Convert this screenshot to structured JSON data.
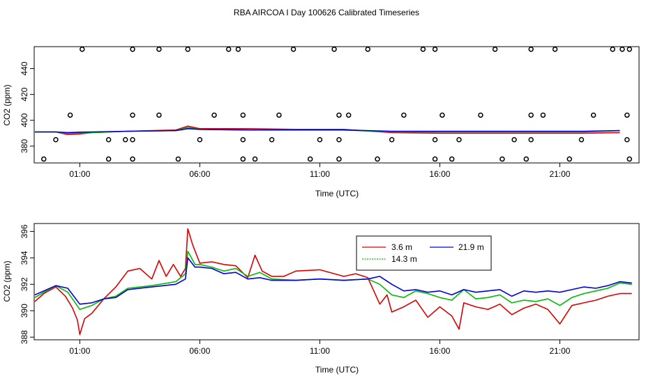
{
  "title": "RBA AIRCOA I  Day 100626  Calibrated Timeseries",
  "chart_data": [
    {
      "type": "line",
      "panel": "top",
      "title": "",
      "xlabel": "Time (UTC)",
      "ylabel": "CO2 (ppm)",
      "xlim": [
        -0.9,
        24.3
      ],
      "ylim": [
        367,
        457
      ],
      "yticks": [
        380,
        400,
        420,
        440
      ],
      "xticks": [
        {
          "value": 1,
          "label": "01:00"
        },
        {
          "value": 6,
          "label": "06:00"
        },
        {
          "value": 11,
          "label": "11:00"
        },
        {
          "value": 16,
          "label": "16:00"
        },
        {
          "value": 21,
          "label": "21:00"
        }
      ],
      "series": [
        {
          "name": "3.6 m",
          "color": "#dd0000",
          "x": [
            -1,
            0,
            0.5,
            1,
            1.5,
            3,
            5,
            5.5,
            6,
            8,
            10,
            12,
            14,
            16,
            18,
            20,
            22,
            23.5
          ],
          "values": [
            391,
            391,
            389,
            389.5,
            390.5,
            391.5,
            392.5,
            395.5,
            393.5,
            393.5,
            393,
            393,
            390.5,
            390,
            390,
            390,
            390,
            390.5
          ]
        },
        {
          "name": "14.3 m",
          "color": "#00bb00",
          "x": [
            -1,
            0,
            0.5,
            1,
            1.5,
            3,
            5,
            5.5,
            6,
            8,
            10,
            12,
            14,
            16,
            18,
            20,
            22,
            23.5
          ],
          "values": [
            391,
            391,
            390,
            390.2,
            390.5,
            391.5,
            392,
            394.5,
            393,
            392.5,
            392.5,
            392.5,
            391,
            391,
            391,
            391,
            391,
            392
          ]
        },
        {
          "name": "21.9 m",
          "color": "#0000dd",
          "x": [
            -1,
            0,
            0.5,
            1,
            1.5,
            3,
            5,
            5.5,
            6,
            8,
            10,
            12,
            14,
            16,
            18,
            20,
            22,
            23.5
          ],
          "values": [
            391,
            391,
            390.5,
            390.8,
            391,
            391.5,
            392,
            393.5,
            393,
            392.5,
            392.5,
            392.5,
            391.5,
            391.5,
            391.5,
            391.5,
            391.5,
            392
          ]
        }
      ],
      "calibration_points": {
        "x": [
          -0.5,
          0,
          0.6,
          1.1,
          2.2,
          2.2,
          2.9,
          3.2,
          3.2,
          3.2,
          3.2,
          4.3,
          4.3,
          5.1,
          5.5,
          6.0,
          6.6,
          7.2,
          7.6,
          7.8,
          7.8,
          7.8,
          8.3,
          9.0,
          9.3,
          9.9,
          10.6,
          11.0,
          11.6,
          11.8,
          11.8,
          11.8,
          12.2,
          13.0,
          13.4,
          14.0,
          14.5,
          15.3,
          15.8,
          15.8,
          15.8,
          16.1,
          16.5,
          16.8,
          17.7,
          18.3,
          18.6,
          19.1,
          19.6,
          19.8,
          19.8,
          19.8,
          20.3,
          20.8,
          21.4,
          21.9,
          22.4,
          23.2,
          23.6,
          23.8,
          23.8,
          23.9,
          23.9
        ],
        "values": [
          370,
          385,
          404,
          455,
          370,
          385,
          385,
          370,
          385,
          404,
          455,
          404,
          455,
          370,
          455,
          385,
          404,
          455,
          455,
          385,
          370,
          404,
          370,
          385,
          404,
          455,
          370,
          385,
          455,
          404,
          385,
          370,
          404,
          455,
          370,
          385,
          404,
          455,
          455,
          370,
          385,
          404,
          370,
          385,
          404,
          455,
          370,
          385,
          370,
          385,
          404,
          455,
          404,
          455,
          370,
          385,
          404,
          455,
          455,
          404,
          385,
          370,
          455
        ]
      }
    },
    {
      "type": "line",
      "panel": "bottom",
      "title": "",
      "xlabel": "Time (UTC)",
      "ylabel": "CO2 (ppm)",
      "xlim": [
        -0.9,
        24.3
      ],
      "ylim": [
        387.8,
        396.6
      ],
      "yticks": [
        388,
        390,
        392,
        394,
        396
      ],
      "xticks": [
        {
          "value": 1,
          "label": "01:00"
        },
        {
          "value": 6,
          "label": "06:00"
        },
        {
          "value": 11,
          "label": "11:00"
        },
        {
          "value": 16,
          "label": "16:00"
        },
        {
          "value": 21,
          "label": "21:00"
        }
      ],
      "legend": {
        "position": "top-center-right",
        "entries": [
          "3.6 m",
          "21.9 m",
          "14.3 m"
        ]
      },
      "series": [
        {
          "name": "3.6 m",
          "color": "#dd0000",
          "x": [
            -1,
            -0.5,
            0,
            0.4,
            0.7,
            0.9,
            1.0,
            1.2,
            1.5,
            2.0,
            2.5,
            3.0,
            3.5,
            4.0,
            4.3,
            4.6,
            4.9,
            5.2,
            5.4,
            5.5,
            5.7,
            6.0,
            6.5,
            7.0,
            7.5,
            8.0,
            8.3,
            8.6,
            9.0,
            9.5,
            10.0,
            11.0,
            12.0,
            12.5,
            13.0,
            13.5,
            13.8,
            14.0,
            14.5,
            15.0,
            15.5,
            16.0,
            16.5,
            16.8,
            17.0,
            17.5,
            18.0,
            18.5,
            19.0,
            19.5,
            20.0,
            20.5,
            21.0,
            21.5,
            22.0,
            22.5,
            23.0,
            23.5,
            24.0
          ],
          "values": [
            390.7,
            391.3,
            391.8,
            391.1,
            390.2,
            389.3,
            388.2,
            389.4,
            389.8,
            390.9,
            391.8,
            393.0,
            393.2,
            392.4,
            393.8,
            392.6,
            393.5,
            392.6,
            393.2,
            396.2,
            395.0,
            393.6,
            393.7,
            393.5,
            393.4,
            392.5,
            394.2,
            393.0,
            392.6,
            392.6,
            393.0,
            393.1,
            392.6,
            392.8,
            392.5,
            390.5,
            391.2,
            389.9,
            390.3,
            390.8,
            389.5,
            390.3,
            389.6,
            388.6,
            390.6,
            390.3,
            390.1,
            390.5,
            389.7,
            390.2,
            390.5,
            390.1,
            389.0,
            390.4,
            390.6,
            390.8,
            391.1,
            391.3,
            391.3
          ]
        },
        {
          "name": "14.3 m",
          "color": "#00bb00",
          "x": [
            -1,
            -0.5,
            0,
            0.5,
            1.0,
            1.5,
            2.0,
            2.5,
            3.0,
            4.0,
            5.0,
            5.4,
            5.5,
            5.8,
            6.0,
            6.5,
            7.0,
            7.5,
            8.0,
            8.5,
            9.0,
            10.0,
            11.0,
            12.0,
            13.0,
            13.5,
            14.0,
            14.5,
            15.0,
            15.5,
            16.0,
            16.5,
            17.0,
            17.5,
            18.0,
            18.5,
            19.0,
            19.5,
            20.0,
            20.5,
            21.0,
            21.5,
            22.0,
            22.5,
            23.0,
            23.5,
            24.0
          ],
          "values": [
            391.0,
            391.4,
            391.9,
            391.4,
            390.1,
            390.4,
            390.9,
            391.1,
            391.7,
            391.9,
            392.2,
            392.8,
            394.5,
            393.5,
            393.5,
            393.3,
            393.0,
            393.2,
            392.6,
            392.9,
            392.4,
            392.3,
            392.4,
            392.3,
            392.4,
            392.0,
            391.2,
            391.0,
            391.5,
            391.3,
            391.0,
            390.8,
            391.6,
            390.9,
            391.0,
            391.2,
            390.6,
            390.8,
            390.7,
            390.9,
            390.4,
            391.0,
            391.3,
            391.5,
            391.7,
            392.1,
            392.0
          ]
        },
        {
          "name": "21.9 m",
          "color": "#0000dd",
          "x": [
            -1,
            -0.5,
            0,
            0.5,
            1.0,
            1.5,
            2.0,
            2.5,
            3.0,
            4.0,
            5.0,
            5.4,
            5.5,
            5.8,
            6.0,
            6.5,
            7.0,
            7.5,
            8.0,
            8.5,
            9.0,
            10.0,
            11.0,
            12.0,
            13.0,
            13.5,
            14.0,
            14.5,
            15.0,
            15.5,
            16.0,
            16.5,
            17.0,
            17.5,
            18.0,
            18.5,
            19.0,
            19.5,
            20.0,
            20.5,
            21.0,
            21.5,
            22.0,
            22.5,
            23.0,
            23.5,
            24.0
          ],
          "values": [
            391.2,
            391.5,
            391.9,
            391.7,
            390.5,
            390.6,
            390.9,
            391.0,
            391.6,
            391.8,
            392.0,
            392.4,
            394.0,
            393.3,
            393.3,
            393.2,
            392.8,
            392.9,
            392.4,
            392.5,
            392.3,
            392.3,
            392.4,
            392.3,
            392.4,
            392.6,
            392.0,
            391.5,
            391.6,
            391.4,
            391.5,
            391.2,
            391.6,
            391.4,
            391.5,
            391.6,
            391.1,
            391.5,
            391.4,
            391.5,
            391.4,
            391.6,
            391.8,
            391.7,
            391.9,
            392.2,
            392.1
          ]
        }
      ]
    }
  ]
}
